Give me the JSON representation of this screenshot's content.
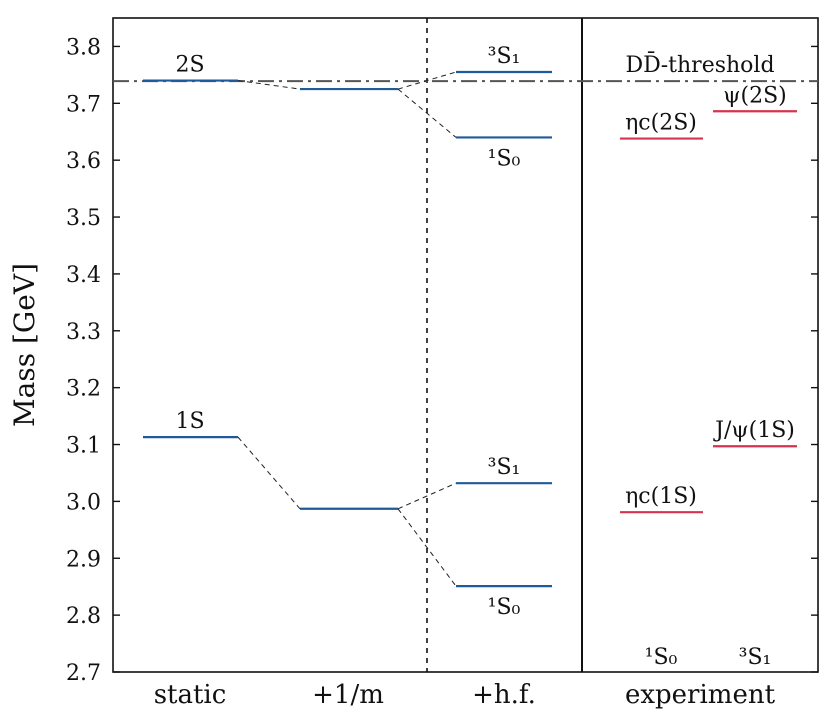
{
  "chart_data": {
    "type": "level-diagram",
    "ylabel": "Mass [GeV]",
    "ylim": [
      2.7,
      3.85
    ],
    "yticks": [
      "2.7",
      "2.8",
      "2.9",
      "3.0",
      "3.1",
      "3.2",
      "3.3",
      "3.4",
      "3.5",
      "3.6",
      "3.7",
      "3.8"
    ],
    "categories": [
      "static",
      "+1/m",
      "+h.f.",
      "experiment"
    ],
    "threshold": {
      "label": "DD̄-threshold",
      "value": 3.739,
      "color": "#555555"
    },
    "theory_levels": [
      {
        "column": "static",
        "label": "2S",
        "value": 3.74
      },
      {
        "column": "+1/m",
        "label": "",
        "value": 3.725
      },
      {
        "column": "+h.f.",
        "label": "³S₁",
        "value": 3.755
      },
      {
        "column": "+h.f.",
        "label": "¹S₀",
        "value": 3.64
      },
      {
        "column": "static",
        "label": "1S",
        "value": 3.113
      },
      {
        "column": "+1/m",
        "label": "",
        "value": 2.987
      },
      {
        "column": "+h.f.",
        "label": "³S₁",
        "value": 3.032
      },
      {
        "column": "+h.f.",
        "label": "¹S₀",
        "value": 2.851
      }
    ],
    "experiment_levels": [
      {
        "sub": "¹S₀",
        "label": "ηc(2S)",
        "value": 3.638
      },
      {
        "sub": "³S₁",
        "label": "ψ(2S)",
        "value": 3.686
      },
      {
        "sub": "¹S₀",
        "label": "ηc(1S)",
        "value": 2.981
      },
      {
        "sub": "³S₁",
        "label": "J/ψ(1S)",
        "value": 3.097
      }
    ],
    "experiment_columns": [
      "¹S₀",
      "³S₁"
    ],
    "theory_color": "#1f5a9a",
    "experiment_color": "#d6334f"
  }
}
